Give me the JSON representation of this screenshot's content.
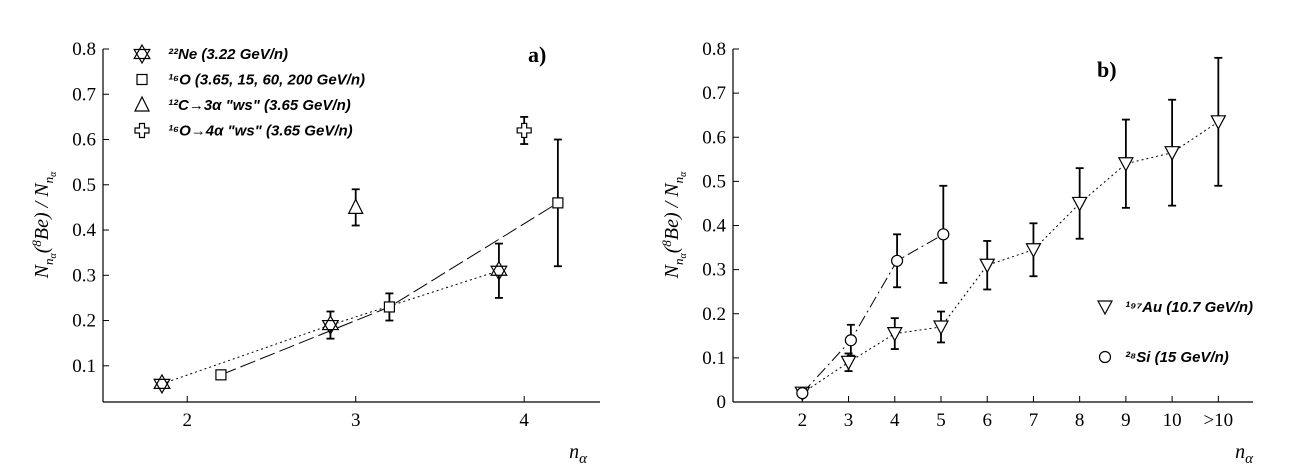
{
  "chart_data": [
    {
      "type": "scatter",
      "panel_label": "a)",
      "xlabel": "n_α",
      "ylabel": "N_nα(8Be) / N_nα",
      "xlim": [
        1.5,
        4.45
      ],
      "ylim": [
        0.02,
        0.8
      ],
      "xticks": [
        "2",
        "3",
        "4"
      ],
      "yticks": [
        "0.1",
        "0.2",
        "0.3",
        "0.4",
        "0.5",
        "0.6",
        "0.7",
        "0.8"
      ],
      "legend_position": "top-left",
      "series": [
        {
          "name": "²²Ne (3.22 GeV/n)",
          "marker": "star",
          "line": "dotted",
          "x": [
            1.85,
            2.85,
            3.85
          ],
          "y": [
            0.06,
            0.19,
            0.31
          ],
          "yerr": [
            0,
            0.03,
            0.06
          ]
        },
        {
          "name": "¹⁶O (3.65, 15, 60, 200 GeV/n)",
          "marker": "square",
          "line": "dashed",
          "x": [
            2.2,
            3.2,
            4.2
          ],
          "y": [
            0.08,
            0.23,
            0.46
          ],
          "yerr": [
            0,
            0.03,
            0.14
          ]
        },
        {
          "name": "¹²C→3α \"ws\" (3.65 GeV/n)",
          "marker": "triangle-up",
          "line": "none",
          "x": [
            3.0
          ],
          "y": [
            0.45
          ],
          "yerr": [
            0.04
          ]
        },
        {
          "name": "¹⁶O→4α \"ws\" (3.65 GeV/n)",
          "marker": "cross",
          "line": "none",
          "x": [
            4.0
          ],
          "y": [
            0.62
          ],
          "yerr": [
            0.03
          ]
        }
      ]
    },
    {
      "type": "scatter",
      "panel_label": "b)",
      "xlabel": "n_α",
      "ylabel": "N_nα(8Be) / N_nα",
      "xlim": [
        0.5,
        11.75
      ],
      "ylim": [
        0,
        0.8
      ],
      "xticks": [
        "2",
        "3",
        "4",
        "5",
        "6",
        "7",
        "8",
        "9",
        "10",
        ">10"
      ],
      "yticks": [
        "0",
        "0.1",
        "0.2",
        "0.3",
        "0.4",
        "0.5",
        "0.6",
        "0.7",
        "0.8"
      ],
      "legend_position": "right",
      "series": [
        {
          "name": "¹⁹⁷Au (10.7 GeV/n)",
          "marker": "triangle-down",
          "line": "dotted",
          "x": [
            2,
            3,
            4,
            5,
            6,
            7,
            8,
            9,
            10,
            11
          ],
          "y": [
            0.02,
            0.09,
            0.155,
            0.17,
            0.31,
            0.345,
            0.45,
            0.54,
            0.565,
            0.635
          ],
          "yerr": [
            0.005,
            0.02,
            0.035,
            0.035,
            0.055,
            0.06,
            0.08,
            0.1,
            0.12,
            0.145
          ]
        },
        {
          "name": "²⁸Si (15 GeV/n)",
          "marker": "circle",
          "line": "dashdot",
          "x": [
            2,
            3.05,
            4.05,
            5.05
          ],
          "y": [
            0.02,
            0.14,
            0.32,
            0.38
          ],
          "yerr": [
            0.005,
            0.035,
            0.06,
            0.11
          ]
        }
      ]
    }
  ]
}
